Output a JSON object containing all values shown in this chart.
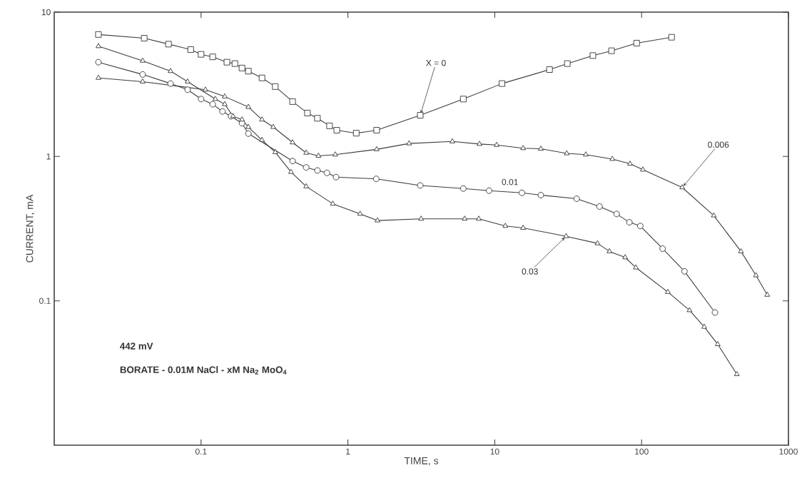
{
  "chart_data": {
    "type": "line",
    "xlabel": "TIME, s",
    "ylabel": "CURRENT, mA",
    "log": "xy",
    "xlim": [
      0.01,
      1000
    ],
    "ylim": [
      0.01,
      10
    ],
    "xticks": [
      0.1,
      1,
      10,
      100,
      1000
    ],
    "yticks": [
      0.1,
      1,
      10
    ],
    "annotations": [
      "442 mV",
      "BORATE - 0.01M  NaCl - xM Na$_{2}$ MoO$_{4}$"
    ],
    "series": [
      {
        "name": "X = 0",
        "color": "#3c3c3c",
        "marker": "square",
        "x": [
          0.02,
          0.041,
          0.06,
          0.085,
          0.1,
          0.12,
          0.15,
          0.17,
          0.19,
          0.21,
          0.26,
          0.32,
          0.42,
          0.53,
          0.62,
          0.75,
          0.84,
          1.14,
          1.57,
          3.11,
          6.11,
          11.2,
          23.6,
          31.2,
          46.6,
          62.4,
          92.5,
          160
        ],
        "values": [
          7.0,
          6.6,
          6.0,
          5.5,
          5.1,
          4.9,
          4.5,
          4.4,
          4.1,
          3.9,
          3.5,
          3.05,
          2.4,
          2.0,
          1.84,
          1.63,
          1.52,
          1.45,
          1.52,
          1.93,
          2.5,
          3.2,
          4.0,
          4.4,
          5.0,
          5.4,
          6.1,
          6.7
        ]
      },
      {
        "name": "0.006",
        "color": "#3c3c3c",
        "marker": "triangle",
        "x": [
          0.02,
          0.04,
          0.107,
          0.145,
          0.21,
          0.26,
          0.31,
          0.42,
          0.52,
          0.63,
          0.82,
          1.57,
          2.61,
          5.14,
          7.87,
          10.3,
          15.6,
          20.6,
          30.9,
          41.7,
          63.2,
          83.4,
          102,
          189,
          310,
          475,
          601,
          717
        ],
        "values": [
          3.5,
          3.3,
          2.9,
          2.6,
          2.2,
          1.8,
          1.6,
          1.25,
          1.06,
          1.01,
          1.03,
          1.12,
          1.23,
          1.27,
          1.22,
          1.2,
          1.14,
          1.13,
          1.05,
          1.03,
          0.96,
          0.89,
          0.81,
          0.61,
          0.39,
          0.22,
          0.15,
          0.11
        ]
      },
      {
        "name": "0.01",
        "color": "#3c3c3c",
        "marker": "circle",
        "x": [
          0.02,
          0.04,
          0.062,
          0.081,
          0.1,
          0.12,
          0.14,
          0.16,
          0.19,
          0.21,
          0.42,
          0.52,
          0.62,
          0.72,
          0.83,
          1.56,
          3.11,
          6.11,
          9.14,
          15.3,
          20.6,
          36.1,
          51.7,
          67.6,
          82.6,
          98,
          139,
          196,
          316
        ],
        "values": [
          4.5,
          3.7,
          3.2,
          2.9,
          2.5,
          2.3,
          2.05,
          1.9,
          1.7,
          1.44,
          0.93,
          0.84,
          0.8,
          0.77,
          0.72,
          0.7,
          0.63,
          0.6,
          0.58,
          0.56,
          0.54,
          0.51,
          0.45,
          0.4,
          0.35,
          0.33,
          0.23,
          0.16,
          0.083
        ]
      },
      {
        "name": "0.03",
        "color": "#3c3c3c",
        "marker": "triangle",
        "x": [
          0.02,
          0.04,
          0.062,
          0.081,
          0.125,
          0.145,
          0.165,
          0.19,
          0.21,
          0.26,
          0.32,
          0.41,
          0.52,
          0.79,
          1.21,
          1.59,
          3.15,
          6.24,
          7.78,
          11.8,
          15.6,
          30.6,
          50.1,
          60.4,
          77.3,
          91.4,
          151,
          212,
          267,
          330,
          445
        ],
        "values": [
          5.8,
          4.6,
          3.9,
          3.3,
          2.5,
          2.3,
          1.9,
          1.8,
          1.6,
          1.3,
          1.07,
          0.78,
          0.62,
          0.47,
          0.4,
          0.36,
          0.37,
          0.37,
          0.37,
          0.33,
          0.32,
          0.28,
          0.25,
          0.22,
          0.2,
          0.17,
          0.115,
          0.086,
          0.066,
          0.05,
          0.031
        ]
      }
    ]
  }
}
